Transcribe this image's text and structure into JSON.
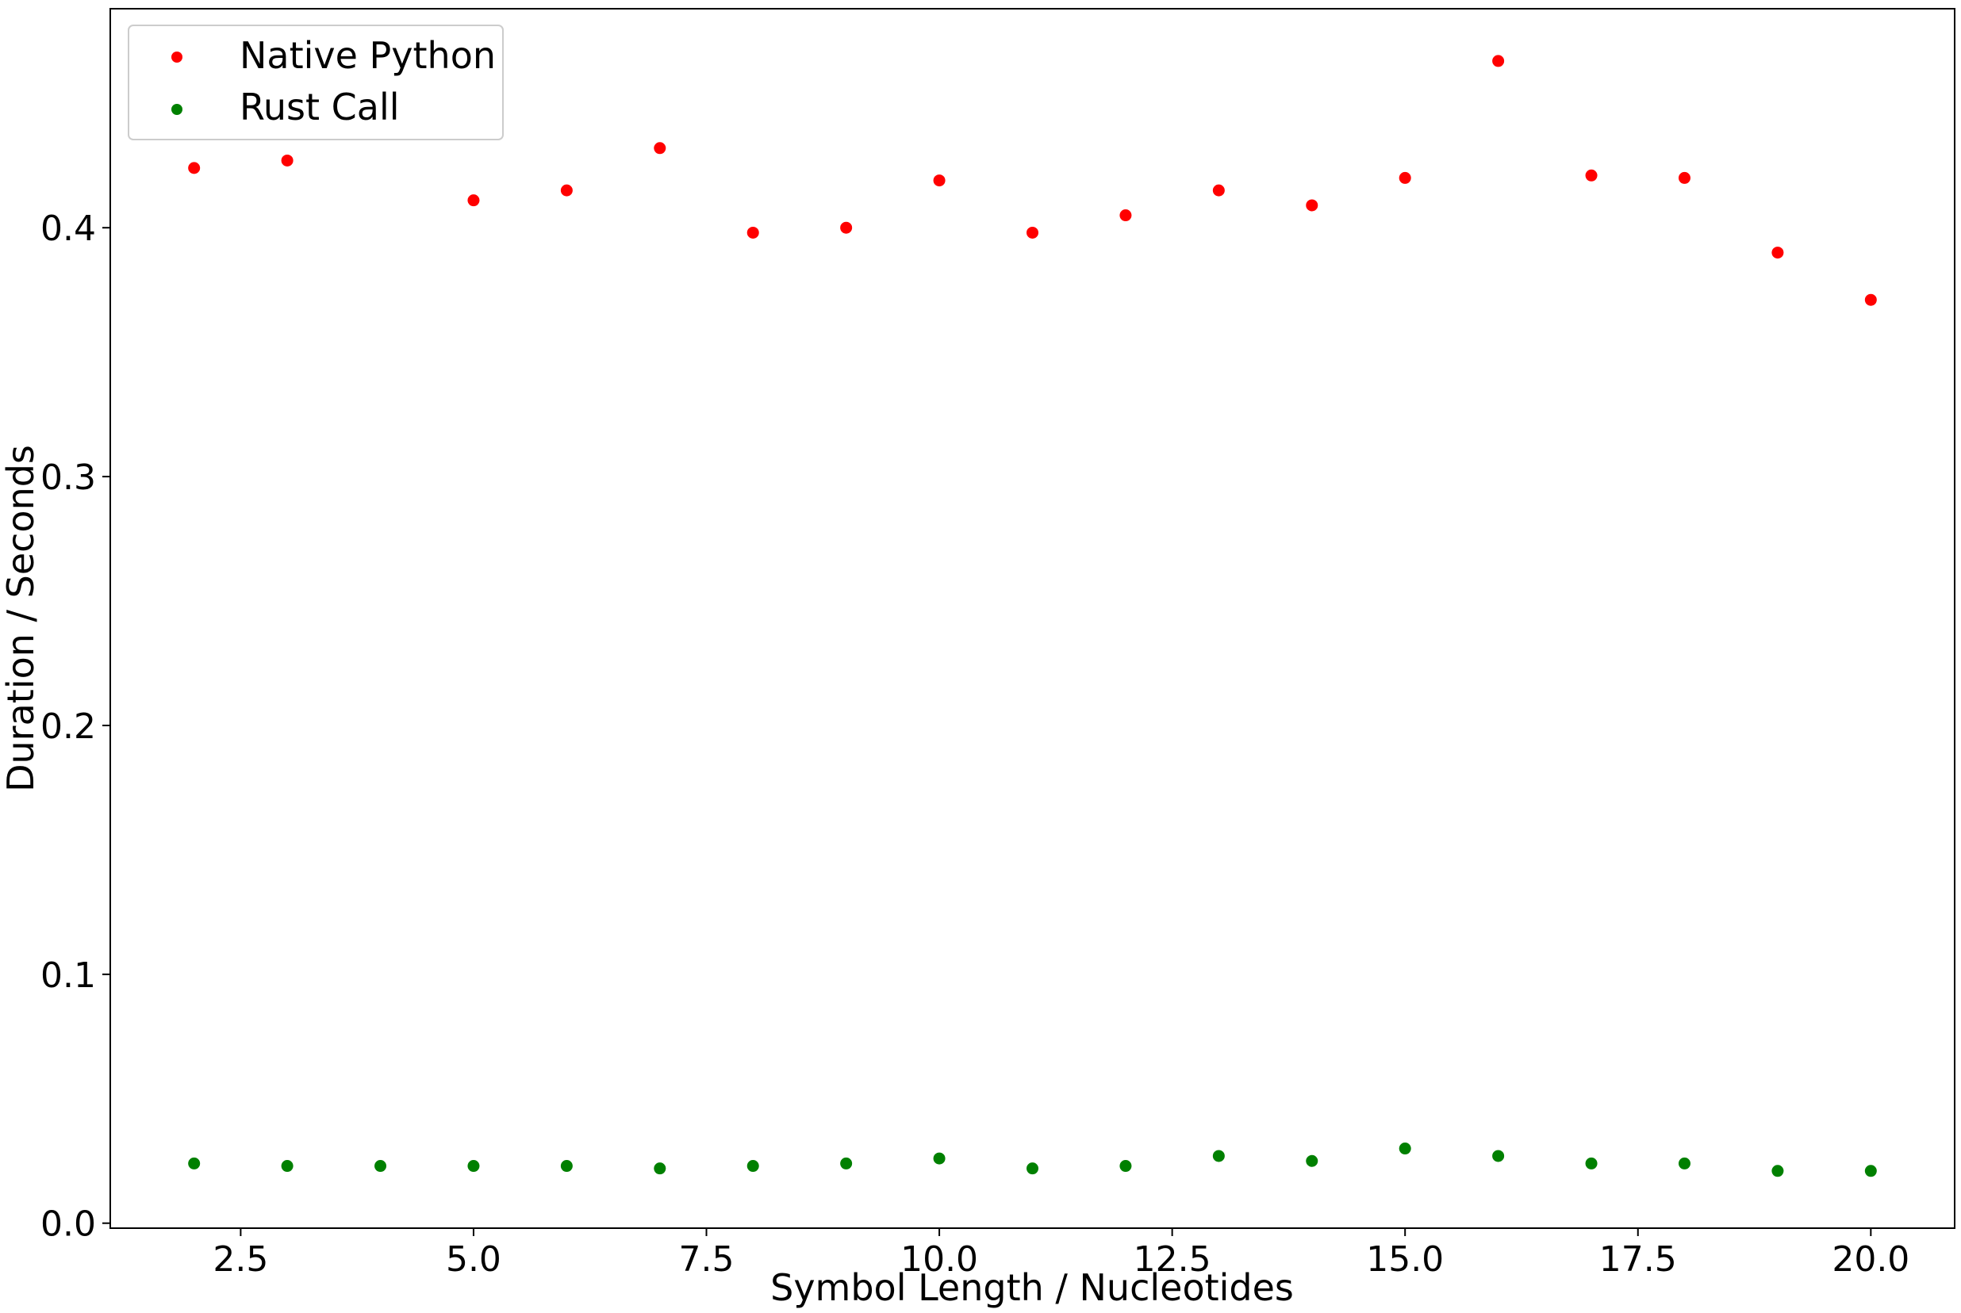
{
  "chart_data": {
    "type": "scatter",
    "title": "",
    "xlabel": "Symbol Length / Nucleotides",
    "ylabel": "Duration / Seconds",
    "xlim": [
      1.1,
      20.9
    ],
    "ylim": [
      -0.002,
      0.488
    ],
    "xticks": [
      2.5,
      5.0,
      7.5,
      10.0,
      12.5,
      15.0,
      17.5,
      20.0
    ],
    "xtick_labels": [
      "2.5",
      "5.0",
      "7.5",
      "10.0",
      "12.5",
      "15.0",
      "17.5",
      "20.0"
    ],
    "yticks": [
      0.0,
      0.1,
      0.2,
      0.3,
      0.4
    ],
    "ytick_labels": [
      "0.0",
      "0.1",
      "0.2",
      "0.3",
      "0.4"
    ],
    "grid": false,
    "legend_position": "top-left",
    "series": [
      {
        "name": "Native Python",
        "color": "#ff0000",
        "x": [
          2,
          3,
          5,
          6,
          7,
          8,
          9,
          10,
          11,
          12,
          13,
          14,
          15,
          16,
          17,
          18,
          19,
          20
        ],
        "y": [
          0.424,
          0.427,
          0.411,
          0.415,
          0.432,
          0.398,
          0.4,
          0.419,
          0.398,
          0.405,
          0.415,
          0.409,
          0.42,
          0.467,
          0.421,
          0.42,
          0.39,
          0.371
        ]
      },
      {
        "name": "Rust Call",
        "color": "#008000",
        "x": [
          2,
          3,
          4,
          5,
          6,
          7,
          8,
          9,
          10,
          11,
          12,
          13,
          14,
          15,
          16,
          17,
          18,
          19,
          20
        ],
        "y": [
          0.024,
          0.023,
          0.023,
          0.023,
          0.023,
          0.022,
          0.023,
          0.024,
          0.026,
          0.022,
          0.023,
          0.027,
          0.025,
          0.03,
          0.027,
          0.024,
          0.024,
          0.021,
          0.021
        ]
      }
    ]
  }
}
